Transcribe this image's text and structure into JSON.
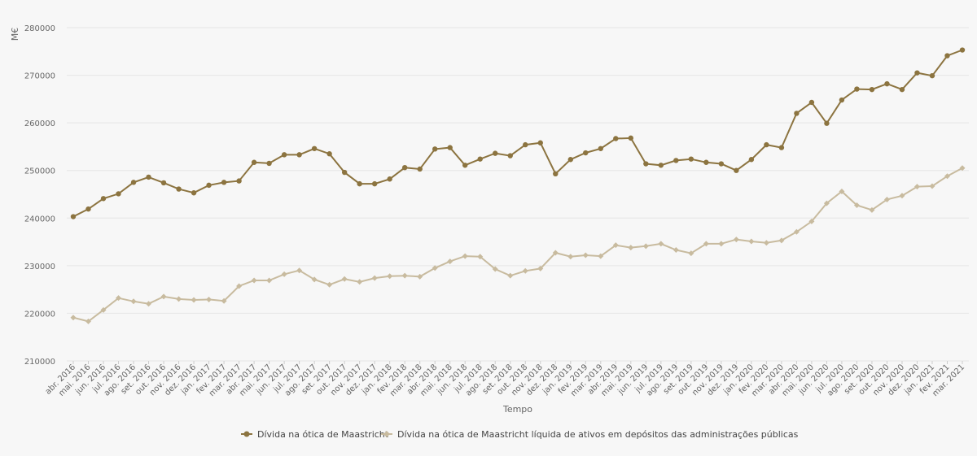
{
  "colors": {
    "series1": "#8c7440",
    "series2": "#c8bb9f",
    "grid": "#e6e6e6",
    "text": "#666666",
    "background": "#f7f7f7"
  },
  "chart_data": {
    "type": "line",
    "title": "",
    "ylabel": "M€",
    "xlabel": "Tempo",
    "ylim": [
      210000,
      280000
    ],
    "yticks": [
      210000,
      220000,
      230000,
      240000,
      250000,
      260000,
      270000,
      280000
    ],
    "grid": true,
    "legend_position": "bottom-center",
    "categories": [
      "abr. 2016",
      "mai. 2016",
      "jun. 2016",
      "jul. 2016",
      "ago. 2016",
      "set. 2016",
      "out. 2016",
      "nov. 2016",
      "dez. 2016",
      "jan. 2017",
      "fev. 2017",
      "mar. 2017",
      "abr. 2017",
      "mai. 2017",
      "jun. 2017",
      "jul. 2017",
      "ago. 2017",
      "set. 2017",
      "out. 2017",
      "nov. 2017",
      "dez. 2017",
      "jan. 2018",
      "fev. 2018",
      "mar. 2018",
      "abr. 2018",
      "mai. 2018",
      "jun. 2018",
      "jul. 2018",
      "ago. 2018",
      "set. 2018",
      "out. 2018",
      "nov. 2018",
      "dez. 2018",
      "jan. 2019",
      "fev. 2019",
      "mar. 2019",
      "abr. 2019",
      "mai. 2019",
      "jun. 2019",
      "jul. 2019",
      "ago. 2019",
      "set. 2019",
      "out. 2019",
      "nov. 2019",
      "dez. 2019",
      "jan. 2020",
      "fev. 2020",
      "mar. 2020",
      "abr. 2020",
      "mai. 2020",
      "jun. 2020",
      "jul. 2020",
      "ago. 2020",
      "set. 2020",
      "out. 2020",
      "nov. 2020",
      "dez. 2020",
      "jan. 2021",
      "fev. 2021",
      "mar. 2021"
    ],
    "series": [
      {
        "name": "Dívida na ótica de Maastricht",
        "marker": "circle",
        "values": [
          240300,
          241900,
          244100,
          245100,
          247500,
          248600,
          247400,
          246100,
          245300,
          246900,
          247500,
          247800,
          251700,
          251500,
          253300,
          253300,
          254600,
          253500,
          249600,
          247200,
          247200,
          248200,
          250600,
          250300,
          254500,
          254800,
          251100,
          252400,
          253600,
          253100,
          255400,
          255800,
          249300,
          252300,
          253700,
          254600,
          256700,
          256800,
          251400,
          251100,
          252100,
          252400,
          251700,
          251400,
          250000,
          252300,
          255400,
          254800,
          262000,
          264300,
          259900,
          264800,
          267100,
          267000,
          268200,
          267000,
          270500,
          269900,
          274100,
          275300
        ]
      },
      {
        "name": "Dívida na ótica de Maastricht líquida de ativos em depósitos das administrações públicas",
        "marker": "diamond",
        "values": [
          219100,
          218300,
          220700,
          223200,
          222500,
          222000,
          223500,
          223000,
          222800,
          222900,
          222600,
          225700,
          226900,
          226900,
          228200,
          229000,
          227100,
          226000,
          227200,
          226600,
          227400,
          227800,
          227900,
          227700,
          229500,
          230900,
          232000,
          231900,
          229300,
          227900,
          228900,
          229400,
          232700,
          231900,
          232200,
          232000,
          234300,
          233800,
          234100,
          234600,
          233300,
          232600,
          234600,
          234600,
          235500,
          235100,
          234800,
          235300,
          237100,
          239300,
          243100,
          245600,
          242700,
          241700,
          243900,
          244700,
          246600,
          246700,
          248800,
          250500
        ]
      }
    ]
  }
}
